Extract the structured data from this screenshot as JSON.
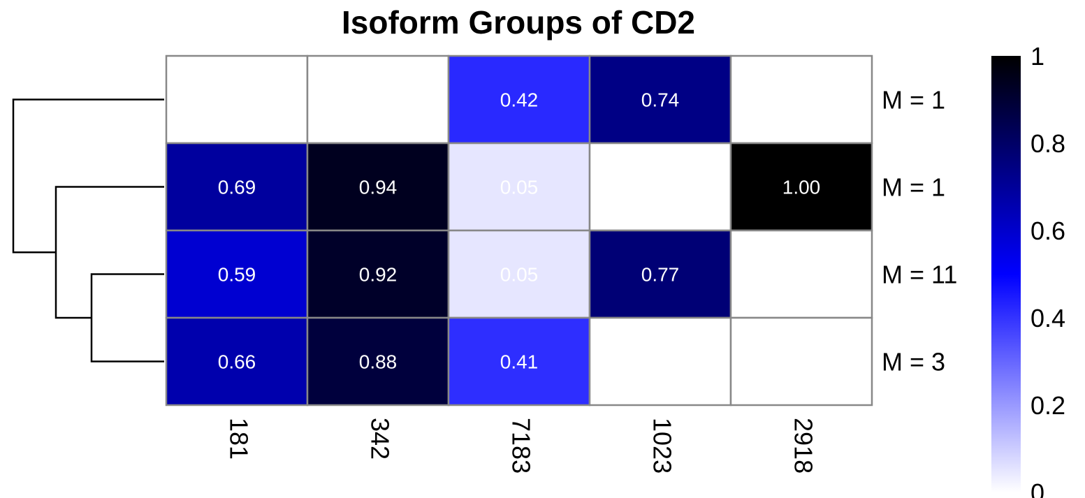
{
  "chart_data": {
    "type": "heatmap",
    "title": "Isoform Groups of CD2",
    "columns": [
      "181",
      "342",
      "7183",
      "1023",
      "2918"
    ],
    "rows": [
      "M = 1",
      "M = 1",
      "M = 11",
      "M = 3"
    ],
    "values": [
      [
        null,
        null,
        0.42,
        0.74,
        null
      ],
      [
        0.69,
        0.94,
        0.05,
        null,
        1.0
      ],
      [
        0.59,
        0.92,
        0.05,
        0.77,
        null
      ],
      [
        0.66,
        0.88,
        0.41,
        null,
        null
      ]
    ],
    "value_labels": [
      [
        "",
        "",
        "0.42",
        "0.74",
        ""
      ],
      [
        "0.69",
        "0.94",
        "0.05",
        "",
        "1.00"
      ],
      [
        "0.59",
        "0.92",
        "0.05",
        "0.77",
        ""
      ],
      [
        "0.66",
        "0.88",
        "0.41",
        "",
        ""
      ]
    ],
    "color_scale": {
      "min": 0,
      "max": 1,
      "stops": [
        "#ffffff",
        "#0000ff",
        "#000000"
      ],
      "ticks": [
        "0",
        "0.2",
        "0.4",
        "0.6",
        "0.8",
        "1"
      ]
    },
    "row_dendrogram": "left",
    "legend_position": "right",
    "grid_color": "#888888"
  }
}
